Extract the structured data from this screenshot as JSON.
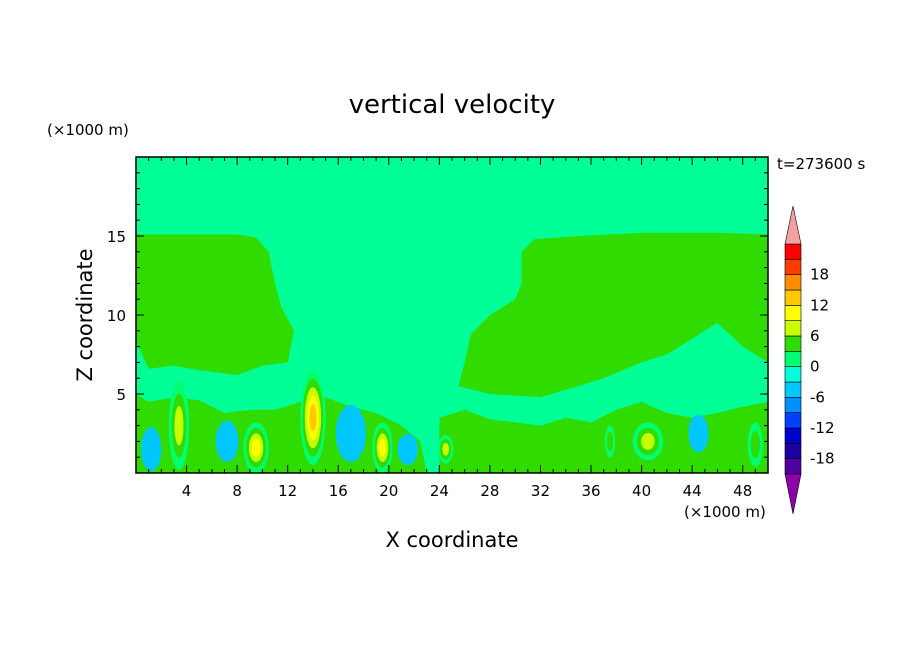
{
  "chart_data": {
    "type": "heatmap",
    "title": "vertical velocity",
    "time_label": "t=273600 s",
    "xlabel": "X coordinate",
    "ylabel": "Z coordinate",
    "x_unit": "(×1000 m)",
    "y_unit": "(×1000 m)",
    "xlim": [
      0,
      50
    ],
    "ylim": [
      0,
      20
    ],
    "x_ticks": [
      4,
      8,
      12,
      16,
      20,
      24,
      28,
      32,
      36,
      40,
      44,
      48
    ],
    "y_ticks": [
      5,
      10,
      15
    ],
    "colorbar": {
      "tick_labels": [
        18,
        12,
        6,
        0,
        -6,
        -12,
        -18
      ],
      "levels": [
        -21,
        -18,
        -15,
        -12,
        -9,
        -6,
        -3,
        0,
        3,
        6,
        9,
        12,
        15,
        18,
        21
      ],
      "colors": [
        "#8e00a8",
        "#5000a0",
        "#1e00a0",
        "#0000cc",
        "#0040ff",
        "#0090ff",
        "#00c8ff",
        "#00ffd8",
        "#00ff70",
        "#30dc00",
        "#c8ff00",
        "#ffff00",
        "#ffc800",
        "#ff8c00",
        "#ff3c00",
        "#ff0000",
        "#f4a0a0"
      ]
    },
    "background_color": "#00ff96",
    "field_regions": [
      {
        "name": "upper-left-updraft-region",
        "color": "#30dc00",
        "polygon": [
          [
            0,
            15.1
          ],
          [
            8,
            15.1
          ],
          [
            9.5,
            14.9
          ],
          [
            10.5,
            14
          ],
          [
            11,
            12
          ],
          [
            11.5,
            10.5
          ],
          [
            12.5,
            9
          ],
          [
            12,
            7
          ],
          [
            10,
            6.8
          ],
          [
            8,
            6.2
          ],
          [
            5,
            6.5
          ],
          [
            3,
            6.8
          ],
          [
            1,
            6.6
          ],
          [
            0,
            8.3
          ]
        ]
      },
      {
        "name": "upper-right-updraft-region",
        "color": "#30dc00",
        "polygon": [
          [
            50,
            15.1
          ],
          [
            46,
            15.2
          ],
          [
            40,
            15.2
          ],
          [
            35,
            15
          ],
          [
            31.5,
            14.8
          ],
          [
            30.5,
            14
          ],
          [
            30.5,
            12
          ],
          [
            30,
            11
          ],
          [
            28,
            10
          ],
          [
            26.5,
            8.8
          ],
          [
            26,
            7
          ],
          [
            25.5,
            5.5
          ],
          [
            28,
            5
          ],
          [
            32,
            4.8
          ],
          [
            35,
            5.5
          ],
          [
            37,
            6
          ],
          [
            40,
            7
          ],
          [
            42,
            7.5
          ],
          [
            44,
            8.5
          ],
          [
            46,
            9.5
          ],
          [
            48,
            8
          ],
          [
            50,
            7
          ]
        ]
      },
      {
        "name": "lower-left-updraft-band",
        "color": "#30dc00",
        "polygon": [
          [
            0,
            0
          ],
          [
            23,
            0
          ],
          [
            22.5,
            2
          ],
          [
            21,
            3
          ],
          [
            19,
            3.8
          ],
          [
            17,
            4.2
          ],
          [
            15,
            4.8
          ],
          [
            13,
            4.5
          ],
          [
            11,
            4
          ],
          [
            9,
            4
          ],
          [
            7,
            3.8
          ],
          [
            5,
            4.6
          ],
          [
            3,
            4.8
          ],
          [
            1,
            4.5
          ],
          [
            0,
            5
          ]
        ]
      },
      {
        "name": "lower-right-updraft-band",
        "color": "#30dc00",
        "polygon": [
          [
            24,
            0
          ],
          [
            50,
            0
          ],
          [
            50,
            4.5
          ],
          [
            48,
            4.2
          ],
          [
            46,
            3.8
          ],
          [
            44,
            3.5
          ],
          [
            42,
            3.8
          ],
          [
            40,
            4.5
          ],
          [
            38,
            4
          ],
          [
            36,
            3.2
          ],
          [
            34,
            3.5
          ],
          [
            32,
            3
          ],
          [
            30,
            3.2
          ],
          [
            28,
            3.4
          ],
          [
            26,
            4
          ],
          [
            24,
            3.5
          ]
        ]
      }
    ],
    "cells": [
      {
        "x": 3.4,
        "z": 3.0,
        "rx": 0.8,
        "rz": 2.8,
        "value": 9
      },
      {
        "x": 9.5,
        "z": 1.6,
        "rx": 1.0,
        "rz": 1.6,
        "value": 12
      },
      {
        "x": 14.0,
        "z": 3.5,
        "rx": 1.0,
        "rz": 3.0,
        "value": 15
      },
      {
        "x": 19.5,
        "z": 1.6,
        "rx": 0.8,
        "rz": 1.6,
        "value": 12
      },
      {
        "x": 24.5,
        "z": 1.5,
        "rx": 0.6,
        "rz": 0.9,
        "value": 9
      },
      {
        "x": 37.5,
        "z": 2.0,
        "rx": 0.4,
        "rz": 1.0,
        "value": 6
      },
      {
        "x": 40.5,
        "z": 2.0,
        "rx": 1.2,
        "rz": 1.2,
        "value": 9
      },
      {
        "x": 49.0,
        "z": 1.8,
        "rx": 0.6,
        "rz": 1.4,
        "value": 6
      },
      {
        "x": 1.2,
        "z": 1.5,
        "rx": 0.8,
        "rz": 1.4,
        "value": -3
      },
      {
        "x": 7.2,
        "z": 2.0,
        "rx": 0.9,
        "rz": 1.3,
        "value": -3
      },
      {
        "x": 17.0,
        "z": 2.5,
        "rx": 1.2,
        "rz": 1.8,
        "value": -3
      },
      {
        "x": 21.5,
        "z": 1.5,
        "rx": 0.8,
        "rz": 1.0,
        "value": -3
      },
      {
        "x": 44.5,
        "z": 2.5,
        "rx": 0.8,
        "rz": 1.2,
        "value": -3
      }
    ]
  }
}
